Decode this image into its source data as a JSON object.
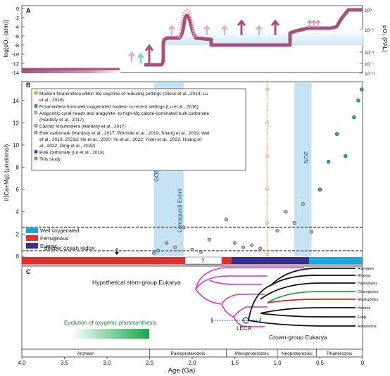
{
  "panels": {
    "a": {
      "label": "A",
      "ylabel_left": "log[pO₂ (atm)]",
      "ylabel_right": "pO₂ (PAL)",
      "left_ticks": [
        "0",
        "-2",
        "-4",
        "-6",
        "-8",
        "-10",
        "-12",
        "-14"
      ],
      "right_ticks": [
        "10⁰",
        "10⁻²",
        "10⁻⁴",
        "10⁻⁷",
        "10⁻¹³"
      ]
    },
    "b": {
      "label": "B",
      "ylabel": "I/(Ca+Mg) (μmol/mol)",
      "yticks": [
        "14",
        "12",
        "10",
        "8",
        "6",
        "4",
        "2",
        "0"
      ],
      "goe": "GOE",
      "noe": "NOE",
      "lomagundi": "Lomagundi Event",
      "deeper_ocean": "deeper ocean redox",
      "question": "?"
    },
    "c": {
      "label": "C",
      "hypothetical": "Hypothetical stem-group Eukarya",
      "crown": "Crown-group Eukarya",
      "leca": "LECA",
      "oxygenic": "Evolution of oxygenic photosynthesis",
      "taxa": [
        "Rhizaria",
        "Haptophytes",
        "Chlorophytes",
        "Rhodophytes",
        "Holozoa",
        "Fungi",
        "Amoebozoa"
      ],
      "top_taxon": "Alveolates"
    }
  },
  "legend_entries": [
    {
      "text": "Modern foraminifera within the oxycline of reducing settings",
      "cite": "(Glock et al., 2014; Lu et al., 2016)",
      "color": "#d6c230"
    },
    {
      "text": "Foraminifera from well-oxygenated modern to recent settings",
      "cite": "(Lu et al., 2016)",
      "color": "#1e8fd0"
    },
    {
      "text": "Aragonitic coral heads and aragonite- to high-Mg calcite-dominated bulk carbonate",
      "cite": "(Hardisty et al., 2017)",
      "color": "#9ecbe6"
    },
    {
      "text": "Calcitic foraminifera",
      "cite": "(Hardisty et al., 2017)",
      "color": "#7fc0c8"
    },
    {
      "text": "Bulk carbonate",
      "cite": "(Hardisty et al., 2017; Wörndle et al., 2019; Shang et al., 2019; Wei et al., 2019, 2021a; He et al., 2020; Yu et al., 2022; Yuan et al., 2022; Huang et al., 2022; Ding et al., 2022)",
      "color": "#a8a8a8"
    },
    {
      "text": "Bulk carbonate",
      "cite": "(Lu et al., 2018)",
      "color": "#444444"
    },
    {
      "text": "This study",
      "cite": "",
      "color": "#ff8c1a"
    }
  ],
  "redox_legend": [
    {
      "label": "Well oxygenated",
      "color": "#1ea5e0"
    },
    {
      "label": "Ferruginous",
      "color": "#e03030"
    },
    {
      "label": "Euxinic",
      "color": "#3a2f8f"
    }
  ],
  "time_axis": {
    "xlabel": "Age (Ga)",
    "eons": [
      "Archean",
      "Paleoproterozoic",
      "Mesoproterozoic",
      "Neoproterozoic",
      "Phanerozoic"
    ],
    "ticks": [
      "4.0",
      "3.5",
      "3.0",
      "2.5",
      "2.0",
      "1.5",
      "1.0",
      "0.5",
      "0"
    ]
  },
  "chart_data": {
    "type": "scatter",
    "xlabel": "Age (Ga)",
    "ylabel": "I/(Ca+Mg) (μmol/mol)",
    "xlim": [
      4.0,
      0
    ],
    "ylim": [
      0,
      15
    ],
    "reference_lines_y": [
      0.5,
      2.6
    ],
    "shaded_intervals_ga": [
      [
        2.45,
        2.1
      ],
      [
        0.8,
        0.6
      ]
    ],
    "series": [
      {
        "name": "Bulk carbonate",
        "x": [
          2.45,
          2.4,
          2.3,
          2.2,
          2.1,
          2.0,
          1.9,
          1.8,
          1.6,
          1.5,
          1.4,
          1.3,
          1.2,
          1.0,
          0.9,
          0.8,
          0.7,
          0.6
        ],
        "y": [
          0.3,
          0.5,
          1.2,
          0.8,
          2.6,
          0.6,
          0.4,
          1.5,
          3.3,
          1.2,
          0.8,
          1.0,
          0.7,
          2.3,
          4.0,
          3.0,
          4.7,
          2.2
        ]
      },
      {
        "name": "Foraminifera from well-oxygenated modern to recent settings",
        "x": [
          0.5,
          0.4,
          0.3,
          0.2,
          0.1,
          0.05,
          0.01
        ],
        "y": [
          6.0,
          8.5,
          11.0,
          9.0,
          12.5,
          14.0,
          15.0
        ]
      },
      {
        "name": "This study",
        "x": [
          1.12,
          1.12,
          1.12,
          1.12,
          1.12,
          1.12
        ],
        "y": [
          0.2,
          3.0,
          6.0,
          9.0,
          12.0,
          15.0
        ]
      }
    ]
  }
}
